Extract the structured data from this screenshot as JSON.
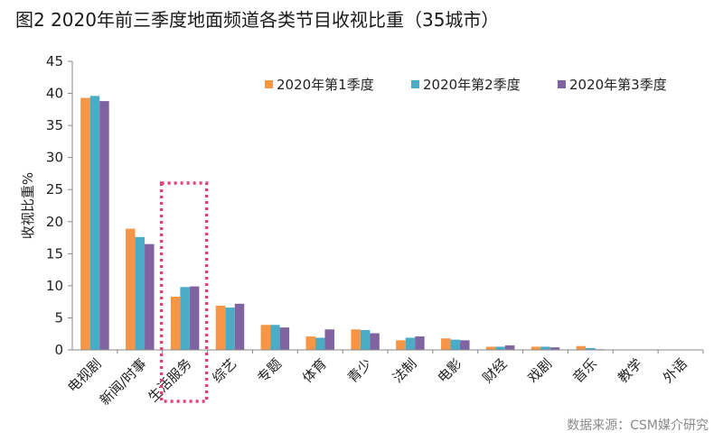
{
  "title": "图2  2020年前三季度地面频道各类节目收视比重（35城市）",
  "source": "数据来源：CSM媒介研究",
  "colors": {
    "q1": "#F79646",
    "q2": "#4BACC6",
    "q3": "#8064A2",
    "highlight": "#E0417A"
  },
  "chart_data": {
    "type": "bar",
    "title": "2020年前三季度地面频道各类节目收视比重（35城市）",
    "xlabel": "",
    "ylabel": "收视比重%",
    "ylim": [
      0,
      45
    ],
    "yticks": [
      0,
      5,
      10,
      15,
      20,
      25,
      30,
      35,
      40,
      45
    ],
    "legend_position": "top-right",
    "highlighted_category": "生活服务",
    "categories": [
      "电视剧",
      "新闻/时事",
      "生活服务",
      "综艺",
      "专题",
      "体育",
      "青少",
      "法制",
      "电影",
      "财经",
      "戏剧",
      "音乐",
      "教学",
      "外语"
    ],
    "series": [
      {
        "name": "2020年第1季度",
        "values": [
          39.3,
          18.9,
          8.3,
          6.9,
          3.9,
          2.1,
          3.2,
          1.5,
          1.8,
          0.5,
          0.5,
          0.6,
          0.0,
          0.0
        ]
      },
      {
        "name": "2020年第2季度",
        "values": [
          39.6,
          17.6,
          9.8,
          6.6,
          3.9,
          1.9,
          3.1,
          1.9,
          1.6,
          0.5,
          0.5,
          0.3,
          0.0,
          0.0
        ]
      },
      {
        "name": "2020年第3季度",
        "values": [
          38.8,
          16.5,
          9.9,
          7.2,
          3.5,
          3.2,
          2.6,
          2.1,
          1.5,
          0.7,
          0.4,
          0.1,
          0.0,
          0.0
        ]
      }
    ]
  }
}
